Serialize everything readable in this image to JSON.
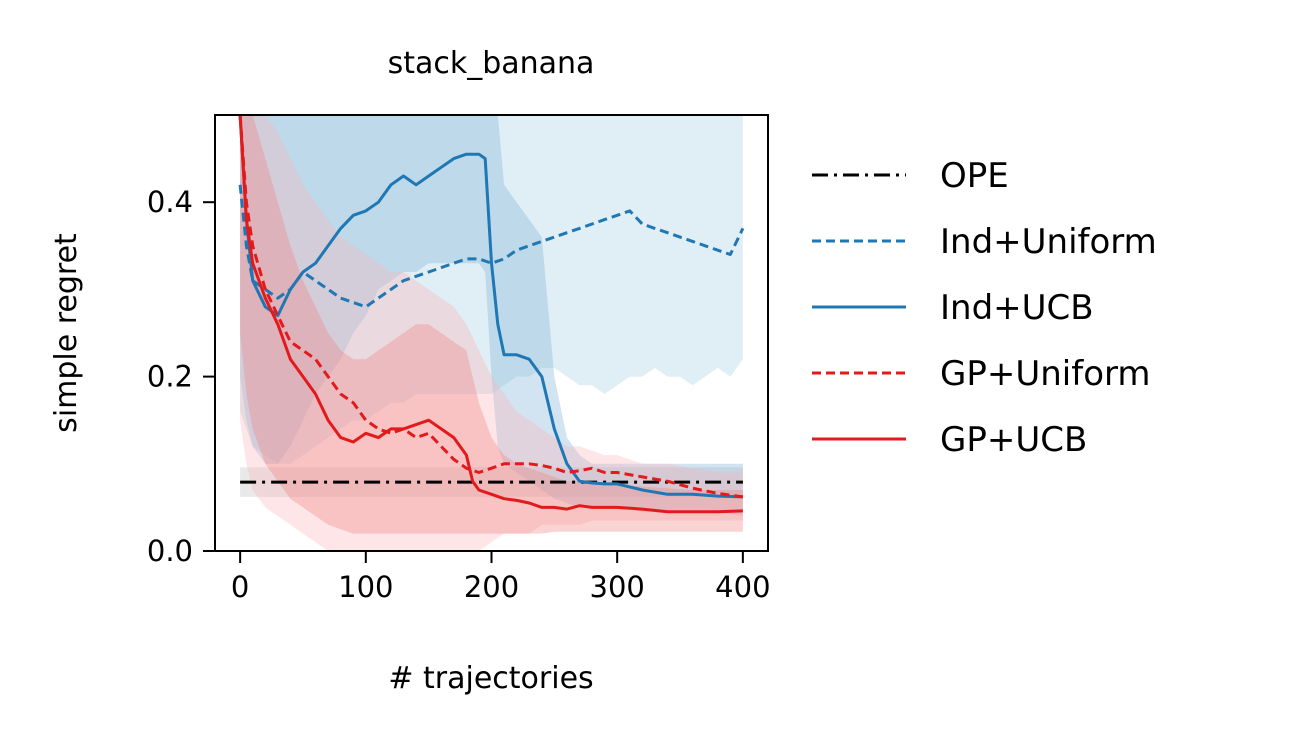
{
  "chart_data": {
    "type": "line",
    "title": "stack_banana",
    "xlabel": "# trajectories",
    "ylabel": "simple regret",
    "xlim": [
      -20,
      420
    ],
    "ylim": [
      0,
      0.5
    ],
    "xticks": [
      0,
      100,
      200,
      300,
      400
    ],
    "yticks": [
      0.0,
      0.2,
      0.4
    ],
    "xtick_labels": [
      "0",
      "100",
      "200",
      "300",
      "400"
    ],
    "ytick_labels": [
      "0.0",
      "0.2",
      "0.4"
    ],
    "grid": false,
    "legend_position": "outside-right",
    "series": [
      {
        "name": "OPE",
        "style": "dashdot",
        "color": "#000000",
        "band_color": "#bfbfbf",
        "x": [
          0,
          400
        ],
        "y": [
          0.079,
          0.079
        ],
        "lower": [
          0.062,
          0.062
        ],
        "upper": [
          0.096,
          0.096
        ]
      },
      {
        "name": "Ind+Uniform",
        "style": "dashed",
        "color": "#1f77b4",
        "band_color": "#a6cee3",
        "x": [
          0,
          5,
          10,
          20,
          30,
          40,
          50,
          60,
          70,
          80,
          90,
          100,
          110,
          120,
          130,
          140,
          150,
          160,
          170,
          180,
          190,
          200,
          210,
          220,
          230,
          240,
          250,
          260,
          270,
          280,
          290,
          300,
          310,
          320,
          330,
          340,
          350,
          360,
          370,
          380,
          390,
          400
        ],
        "y": [
          0.42,
          0.35,
          0.31,
          0.3,
          0.29,
          0.3,
          0.32,
          0.31,
          0.3,
          0.29,
          0.285,
          0.28,
          0.29,
          0.3,
          0.31,
          0.315,
          0.32,
          0.325,
          0.33,
          0.335,
          0.335,
          0.33,
          0.335,
          0.345,
          0.35,
          0.355,
          0.36,
          0.365,
          0.37,
          0.375,
          0.38,
          0.385,
          0.39,
          0.375,
          0.37,
          0.365,
          0.36,
          0.355,
          0.35,
          0.345,
          0.34,
          0.37
        ],
        "lower": [
          0.16,
          0.14,
          0.12,
          0.11,
          0.1,
          0.1,
          0.11,
          0.12,
          0.13,
          0.14,
          0.15,
          0.15,
          0.16,
          0.17,
          0.17,
          0.18,
          0.18,
          0.18,
          0.18,
          0.18,
          0.18,
          0.18,
          0.19,
          0.2,
          0.2,
          0.21,
          0.21,
          0.2,
          0.19,
          0.19,
          0.18,
          0.19,
          0.2,
          0.2,
          0.21,
          0.2,
          0.2,
          0.19,
          0.2,
          0.21,
          0.2,
          0.22
        ],
        "upper": [
          0.5,
          0.5,
          0.5,
          0.5,
          0.5,
          0.5,
          0.5,
          0.5,
          0.5,
          0.5,
          0.5,
          0.5,
          0.5,
          0.5,
          0.5,
          0.5,
          0.5,
          0.5,
          0.5,
          0.5,
          0.5,
          0.5,
          0.5,
          0.5,
          0.5,
          0.5,
          0.5,
          0.5,
          0.5,
          0.5,
          0.5,
          0.5,
          0.5,
          0.5,
          0.5,
          0.5,
          0.5,
          0.5,
          0.5,
          0.5,
          0.5,
          0.5
        ]
      },
      {
        "name": "Ind+UCB",
        "style": "solid",
        "color": "#1f77b4",
        "band_color": "#7fb3d8",
        "x": [
          0,
          5,
          10,
          20,
          30,
          40,
          50,
          60,
          70,
          80,
          90,
          100,
          110,
          120,
          130,
          140,
          150,
          160,
          170,
          180,
          190,
          195,
          200,
          205,
          210,
          220,
          230,
          240,
          250,
          260,
          270,
          280,
          290,
          300,
          320,
          340,
          360,
          380,
          400
        ],
        "y": [
          0.5,
          0.38,
          0.31,
          0.28,
          0.27,
          0.3,
          0.32,
          0.33,
          0.35,
          0.37,
          0.385,
          0.39,
          0.4,
          0.42,
          0.43,
          0.42,
          0.43,
          0.44,
          0.45,
          0.455,
          0.455,
          0.45,
          0.33,
          0.26,
          0.225,
          0.225,
          0.22,
          0.2,
          0.14,
          0.1,
          0.08,
          0.078,
          0.077,
          0.077,
          0.07,
          0.065,
          0.065,
          0.063,
          0.062
        ],
        "lower": [
          0.2,
          0.15,
          0.12,
          0.1,
          0.1,
          0.12,
          0.15,
          0.18,
          0.2,
          0.22,
          0.25,
          0.27,
          0.3,
          0.31,
          0.32,
          0.32,
          0.33,
          0.33,
          0.33,
          0.33,
          0.33,
          0.32,
          0.2,
          0.12,
          0.1,
          0.09,
          0.08,
          0.07,
          0.06,
          0.055,
          0.05,
          0.05,
          0.05,
          0.05,
          0.045,
          0.045,
          0.045,
          0.045,
          0.04
        ],
        "upper": [
          0.5,
          0.5,
          0.5,
          0.5,
          0.5,
          0.5,
          0.5,
          0.5,
          0.5,
          0.5,
          0.5,
          0.5,
          0.5,
          0.5,
          0.5,
          0.5,
          0.5,
          0.5,
          0.5,
          0.5,
          0.5,
          0.5,
          0.5,
          0.5,
          0.42,
          0.4,
          0.38,
          0.36,
          0.2,
          0.13,
          0.11,
          0.1,
          0.1,
          0.1,
          0.1,
          0.1,
          0.1,
          0.1,
          0.1
        ]
      },
      {
        "name": "GP+Uniform",
        "style": "dashed",
        "color": "#e31a1c",
        "band_color": "#fbb4b9",
        "x": [
          0,
          5,
          10,
          20,
          30,
          40,
          50,
          60,
          70,
          80,
          90,
          100,
          110,
          120,
          130,
          140,
          150,
          160,
          170,
          180,
          190,
          200,
          210,
          220,
          230,
          240,
          250,
          260,
          270,
          280,
          290,
          300,
          320,
          340,
          360,
          380,
          400
        ],
        "y": [
          0.5,
          0.4,
          0.35,
          0.3,
          0.27,
          0.24,
          0.23,
          0.22,
          0.2,
          0.18,
          0.17,
          0.15,
          0.14,
          0.135,
          0.14,
          0.13,
          0.135,
          0.12,
          0.105,
          0.095,
          0.09,
          0.095,
          0.1,
          0.1,
          0.1,
          0.098,
          0.095,
          0.09,
          0.092,
          0.095,
          0.09,
          0.09,
          0.085,
          0.08,
          0.072,
          0.066,
          0.062
        ],
        "lower": [
          0.15,
          0.1,
          0.07,
          0.05,
          0.04,
          0.03,
          0.02,
          0.01,
          0.0,
          0.0,
          0.0,
          0.0,
          0.0,
          0.0,
          0.0,
          0.0,
          0.0,
          0.0,
          0.0,
          0.0,
          0.0,
          0.01,
          0.02,
          0.02,
          0.02,
          0.03,
          0.03,
          0.03,
          0.03,
          0.035,
          0.035,
          0.035,
          0.035,
          0.035,
          0.035,
          0.035,
          0.035
        ],
        "upper": [
          0.5,
          0.5,
          0.5,
          0.5,
          0.48,
          0.45,
          0.42,
          0.4,
          0.38,
          0.36,
          0.35,
          0.34,
          0.33,
          0.32,
          0.32,
          0.31,
          0.3,
          0.29,
          0.28,
          0.26,
          0.23,
          0.2,
          0.18,
          0.16,
          0.15,
          0.14,
          0.13,
          0.12,
          0.12,
          0.115,
          0.11,
          0.11,
          0.1,
          0.1,
          0.095,
          0.09,
          0.09
        ]
      },
      {
        "name": "GP+UCB",
        "style": "solid",
        "color": "#e31a1c",
        "band_color": "#f08080",
        "x": [
          0,
          5,
          10,
          20,
          30,
          40,
          50,
          60,
          70,
          80,
          90,
          100,
          110,
          120,
          130,
          140,
          150,
          160,
          170,
          180,
          185,
          190,
          200,
          210,
          220,
          230,
          240,
          250,
          260,
          270,
          280,
          290,
          300,
          320,
          340,
          360,
          380,
          400
        ],
        "y": [
          0.5,
          0.38,
          0.33,
          0.29,
          0.26,
          0.22,
          0.2,
          0.18,
          0.15,
          0.13,
          0.125,
          0.135,
          0.13,
          0.14,
          0.14,
          0.145,
          0.15,
          0.14,
          0.13,
          0.11,
          0.08,
          0.07,
          0.065,
          0.06,
          0.058,
          0.055,
          0.05,
          0.05,
          0.048,
          0.052,
          0.05,
          0.05,
          0.05,
          0.048,
          0.045,
          0.045,
          0.045,
          0.046
        ],
        "lower": [
          0.25,
          0.18,
          0.14,
          0.1,
          0.08,
          0.06,
          0.05,
          0.04,
          0.03,
          0.025,
          0.02,
          0.02,
          0.02,
          0.02,
          0.02,
          0.02,
          0.02,
          0.02,
          0.02,
          0.02,
          0.02,
          0.02,
          0.02,
          0.02,
          0.02,
          0.02,
          0.02,
          0.022,
          0.022,
          0.022,
          0.022,
          0.022,
          0.022,
          0.022,
          0.022,
          0.022,
          0.022,
          0.022
        ],
        "upper": [
          0.5,
          0.5,
          0.5,
          0.45,
          0.4,
          0.35,
          0.31,
          0.28,
          0.25,
          0.23,
          0.22,
          0.22,
          0.23,
          0.24,
          0.25,
          0.26,
          0.26,
          0.25,
          0.24,
          0.23,
          0.2,
          0.17,
          0.13,
          0.11,
          0.1,
          0.095,
          0.09,
          0.085,
          0.08,
          0.08,
          0.08,
          0.078,
          0.076,
          0.074,
          0.072,
          0.07,
          0.07,
          0.07
        ]
      }
    ]
  }
}
